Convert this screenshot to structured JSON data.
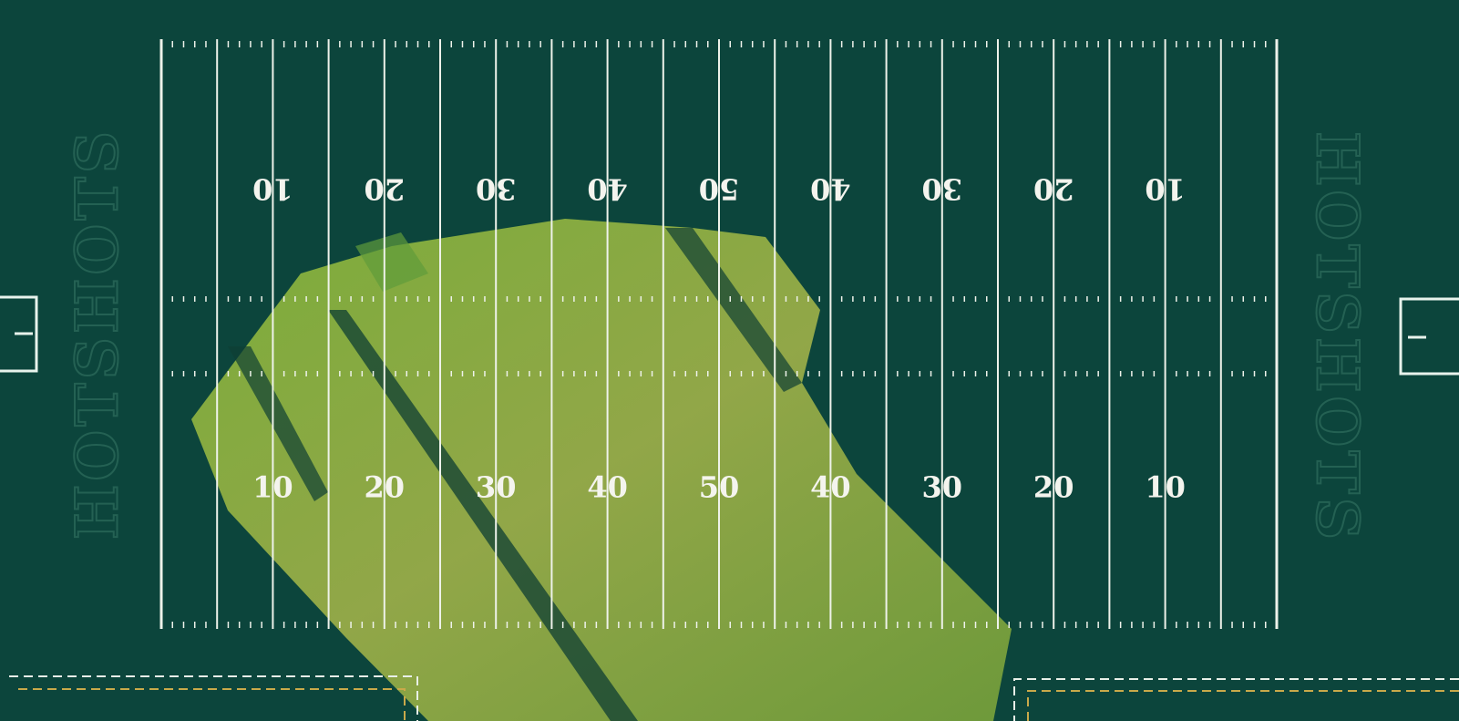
{
  "field": {
    "top_numbers": [
      "10",
      "20",
      "30",
      "40",
      "50",
      "40",
      "30",
      "20",
      "10"
    ],
    "bottom_numbers": [
      "10",
      "20",
      "30",
      "40",
      "50",
      "40",
      "30",
      "20",
      "10"
    ],
    "end_zone_text": [
      "HOTSHOTS",
      "HOTSHOTS"
    ]
  }
}
